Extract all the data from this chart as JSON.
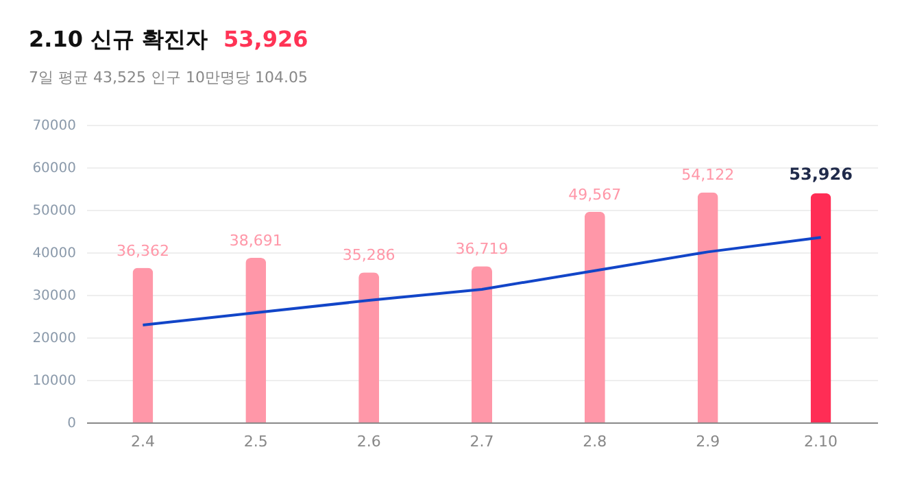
{
  "chart_data": {
    "type": "bar",
    "title": "2.10 신규 확진자",
    "subtitle": "7일 평균 43,525  인구 10만명당 104.05",
    "annotations": [
      "53,926"
    ],
    "categories": [
      "2.4",
      "2.5",
      "2.6",
      "2.7",
      "2.8",
      "2.9",
      "2.10"
    ],
    "series": [
      {
        "colors": [
          "#ff97a8",
          "#ff97a8",
          "#ff97a8",
          "#ff97a8",
          "#ff97a8",
          "#ff97a8",
          "#ff2d55"
        ],
        "values": [
          36362,
          38691,
          35286,
          36719,
          49567,
          54122,
          53926
        ],
        "value_labels": [
          "36,362",
          "38,691",
          "35,286",
          "36,719",
          "49,567",
          "54,122",
          "53,926"
        ]
      },
      {
        "type": "line",
        "color": "#1245c8",
        "values": [
          22900,
          25800,
          28700,
          31300,
          35700,
          40100,
          43525
        ]
      }
    ],
    "ylim": [
      0,
      70000
    ],
    "yticks": [
      0,
      10000,
      20000,
      30000,
      40000,
      50000,
      60000,
      70000
    ],
    "grid": "y",
    "line_style": "solid"
  }
}
